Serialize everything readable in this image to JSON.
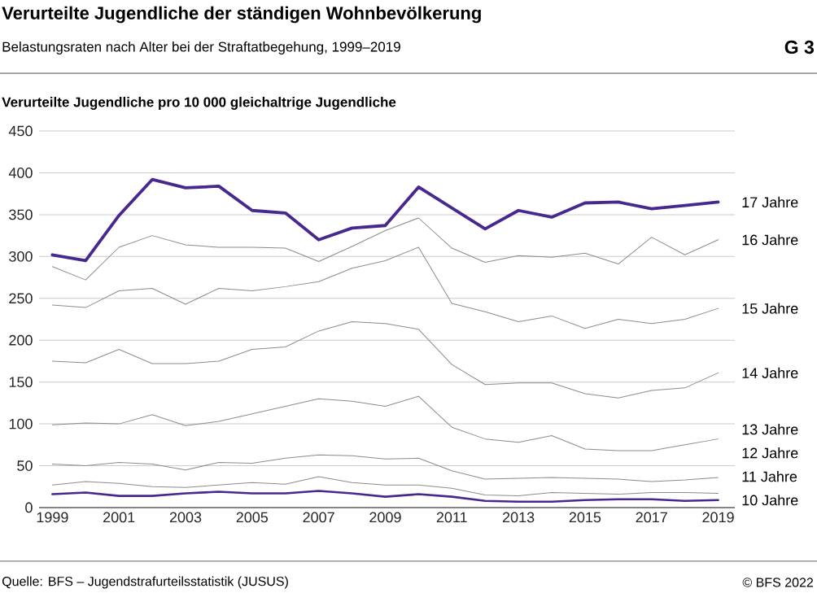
{
  "chart_data": {
    "type": "line",
    "title": "Verurteilte Jugendliche der ständigen Wohnbevölkerung",
    "subtitle": "Belastungsraten nach Alter bei der Straftatbegehung, 1999–2019",
    "ylabel": "Verurteilte Jugendliche pro 10 000 gleichaltrige Jugendliche",
    "annotations": [
      "G 3",
      "Quelle: BFS – Jugendstrafurteilsstatistik (JUSUS)",
      "© BFS 2022"
    ],
    "x": [
      1999,
      2000,
      2001,
      2002,
      2003,
      2004,
      2005,
      2006,
      2007,
      2008,
      2009,
      2010,
      2011,
      2012,
      2013,
      2014,
      2015,
      2016,
      2017,
      2018,
      2019
    ],
    "xlim": [
      1998.6,
      2019.5
    ],
    "xticks": [
      1999,
      2001,
      2003,
      2005,
      2007,
      2009,
      2011,
      2013,
      2015,
      2017,
      2019
    ],
    "ylim": [
      0,
      450
    ],
    "yticks": [
      0,
      50,
      100,
      150,
      200,
      250,
      300,
      350,
      400,
      450
    ],
    "grid": "y",
    "marker": "none",
    "line_style": "solid",
    "series": [
      {
        "name": "17 Jahre",
        "color": "#47288f",
        "values": [
          302,
          295,
          349,
          392,
          382,
          384,
          355,
          352,
          320,
          334,
          337,
          383,
          358,
          333,
          355,
          347,
          364,
          365,
          357,
          361,
          365
        ]
      },
      {
        "name": "16 Jahre",
        "color": "#8c8c8c",
        "values": [
          288,
          272,
          311,
          325,
          314,
          311,
          311,
          310,
          294,
          312,
          331,
          346,
          310,
          293,
          301,
          299,
          304,
          291,
          323,
          302,
          320
        ]
      },
      {
        "name": "15 Jahre",
        "color": "#8c8c8c",
        "values": [
          242,
          239,
          259,
          262,
          243,
          262,
          259,
          264,
          270,
          286,
          295,
          311,
          244,
          234,
          222,
          229,
          214,
          225,
          220,
          225,
          238
        ]
      },
      {
        "name": "14 Jahre",
        "color": "#8c8c8c",
        "values": [
          175,
          173,
          189,
          172,
          172,
          175,
          189,
          192,
          211,
          222,
          220,
          213,
          171,
          147,
          149,
          149,
          136,
          131,
          140,
          143,
          161
        ]
      },
      {
        "name": "13 Jahre",
        "color": "#8c8c8c",
        "values": [
          99,
          101,
          100,
          111,
          98,
          103,
          112,
          121,
          130,
          127,
          121,
          133,
          96,
          82,
          78,
          86,
          70,
          68,
          68,
          75,
          82
        ]
      },
      {
        "name": "12 Jahre",
        "color": "#8c8c8c",
        "values": [
          52,
          50,
          54,
          52,
          45,
          54,
          53,
          59,
          63,
          62,
          58,
          59,
          44,
          34,
          35,
          36,
          35,
          34,
          31,
          33,
          36
        ]
      },
      {
        "name": "11 Jahre",
        "color": "#8c8c8c",
        "values": [
          27,
          31,
          29,
          25,
          24,
          27,
          30,
          28,
          37,
          30,
          27,
          27,
          23,
          15,
          14,
          18,
          17,
          16,
          18,
          18,
          17
        ]
      },
      {
        "name": "10 Jahre",
        "color": "#47288f",
        "values": [
          16,
          18,
          14,
          14,
          17,
          19,
          17,
          17,
          20,
          17,
          13,
          16,
          13,
          8,
          7,
          7,
          9,
          10,
          10,
          8,
          9
        ]
      }
    ]
  }
}
